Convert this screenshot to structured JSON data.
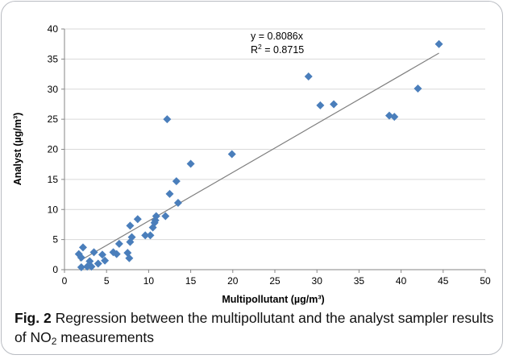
{
  "chart_data": {
    "type": "scatter",
    "xlabel": "Multipollutant (µg/m³)",
    "ylabel": "Analyst (µg/m³)",
    "xlim": [
      0,
      50
    ],
    "ylim": [
      0,
      40
    ],
    "x_ticks": [
      0,
      5,
      10,
      15,
      20,
      25,
      30,
      35,
      40,
      45,
      50
    ],
    "y_ticks": [
      0,
      5,
      10,
      15,
      20,
      25,
      30,
      35,
      40
    ],
    "grid": "horizontal",
    "marker": "diamond",
    "marker_color": "#4a7ebb",
    "trendline": {
      "slope": 0.8086,
      "x_range": [
        1.8,
        44.5
      ],
      "equation": "y = 0.8086x",
      "r2_prefix": "R",
      "r2_sup": "2",
      "r2_suffix": " = 0.8715",
      "color": "#7f7f7f"
    },
    "points": [
      {
        "x": 1.7,
        "y": 2.6
      },
      {
        "x": 2.0,
        "y": 0.4
      },
      {
        "x": 2.0,
        "y": 2.0
      },
      {
        "x": 2.2,
        "y": 3.7
      },
      {
        "x": 2.7,
        "y": 0.5
      },
      {
        "x": 3.0,
        "y": 1.4
      },
      {
        "x": 3.2,
        "y": 0.5
      },
      {
        "x": 3.5,
        "y": 2.9
      },
      {
        "x": 4.0,
        "y": 1.0
      },
      {
        "x": 4.5,
        "y": 2.5
      },
      {
        "x": 4.8,
        "y": 1.5
      },
      {
        "x": 5.8,
        "y": 2.9
      },
      {
        "x": 6.2,
        "y": 2.6
      },
      {
        "x": 6.5,
        "y": 4.3
      },
      {
        "x": 7.5,
        "y": 2.8
      },
      {
        "x": 7.7,
        "y": 1.9
      },
      {
        "x": 7.8,
        "y": 7.3
      },
      {
        "x": 7.8,
        "y": 4.6
      },
      {
        "x": 8.0,
        "y": 5.4
      },
      {
        "x": 8.7,
        "y": 8.4
      },
      {
        "x": 9.6,
        "y": 5.7
      },
      {
        "x": 10.2,
        "y": 5.7
      },
      {
        "x": 10.5,
        "y": 7.0
      },
      {
        "x": 10.7,
        "y": 7.8
      },
      {
        "x": 10.8,
        "y": 8.2
      },
      {
        "x": 10.9,
        "y": 8.9
      },
      {
        "x": 12.0,
        "y": 8.9
      },
      {
        "x": 12.2,
        "y": 25.0
      },
      {
        "x": 12.5,
        "y": 12.6
      },
      {
        "x": 13.3,
        "y": 14.7
      },
      {
        "x": 13.5,
        "y": 11.1
      },
      {
        "x": 15.0,
        "y": 17.6
      },
      {
        "x": 19.9,
        "y": 19.2
      },
      {
        "x": 29.0,
        "y": 32.1
      },
      {
        "x": 30.4,
        "y": 27.3
      },
      {
        "x": 32.0,
        "y": 27.5
      },
      {
        "x": 38.6,
        "y": 25.6
      },
      {
        "x": 39.2,
        "y": 25.4
      },
      {
        "x": 42.0,
        "y": 30.1
      },
      {
        "x": 44.5,
        "y": 37.5
      }
    ]
  },
  "caption": {
    "fig_label": "Fig. 2",
    "text_before": "  Regression between the multipollutant and the analyst sampler results of NO",
    "sub": "2",
    "text_after": " measurements"
  }
}
